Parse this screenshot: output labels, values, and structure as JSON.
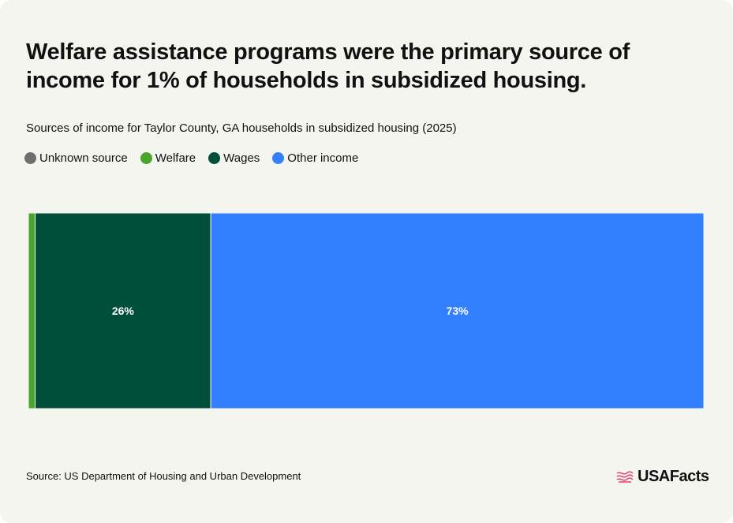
{
  "header": {
    "title": "Welfare assistance programs were the primary source of income for 1% of households in subsidized housing.",
    "subtitle": "Sources of income for Taylor County, GA households in subsidized housing (2025)"
  },
  "legend": [
    {
      "label": "Unknown source",
      "color": "#6e6e6e"
    },
    {
      "label": "Welfare",
      "color": "#4aa52e"
    },
    {
      "label": "Wages",
      "color": "#004f3b"
    },
    {
      "label": "Other income",
      "color": "#3380ff"
    }
  ],
  "chart_data": {
    "type": "bar",
    "orientation": "horizontal-stacked-100",
    "title": "Sources of income for Taylor County, GA households in subsidized housing (2025)",
    "series": [
      {
        "name": "Unknown source",
        "value": 0,
        "color": "#6e6e6e",
        "label": ""
      },
      {
        "name": "Welfare",
        "value": 1,
        "color": "#4aa52e",
        "label": ""
      },
      {
        "name": "Wages",
        "value": 26,
        "color": "#004f3b",
        "label": "26%"
      },
      {
        "name": "Other income",
        "value": 73,
        "color": "#3380ff",
        "label": "73%"
      }
    ],
    "xlim": [
      0,
      100
    ],
    "grid": false,
    "legend_position": "top-left"
  },
  "footer": {
    "source": "Source: US Department of Housing and Urban Development",
    "brand": "USAFacts",
    "brand_icon": "usafacts-flag-icon"
  }
}
